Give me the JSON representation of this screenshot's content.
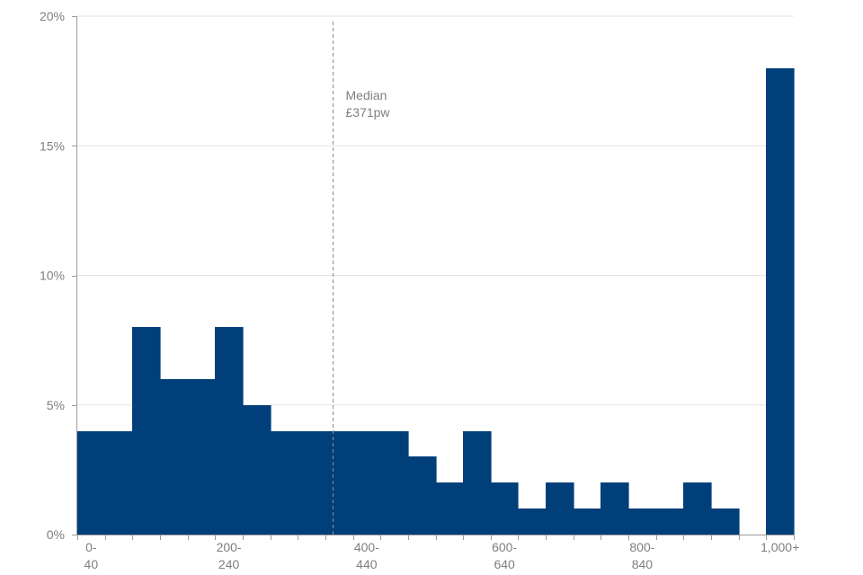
{
  "chart_data": {
    "type": "bar",
    "title": "",
    "xlabel": "",
    "ylabel": "",
    "ylim": [
      0,
      20
    ],
    "y_ticks": [
      "0%",
      "5%",
      "10%",
      "15%",
      "20%"
    ],
    "y_tick_values": [
      0,
      5,
      10,
      15,
      20
    ],
    "grid": true,
    "bar_color": "#003f7a",
    "bin_width": 40,
    "bin_starts": [
      0,
      40,
      80,
      120,
      160,
      200,
      240,
      280,
      320,
      360,
      400,
      440,
      480,
      520,
      560,
      600,
      640,
      680,
      720,
      760,
      800,
      840,
      880,
      920,
      960,
      1000
    ],
    "values": [
      4,
      4,
      8,
      6,
      6,
      8,
      5,
      4,
      4,
      4,
      4,
      4,
      3,
      2,
      4,
      2,
      1,
      2,
      1,
      2,
      1,
      1,
      2,
      1,
      0,
      18
    ],
    "x_tick_labels": [
      {
        "at": 0,
        "line1": "0-",
        "line2": "40"
      },
      {
        "at": 200,
        "line1": "200-",
        "line2": "240"
      },
      {
        "at": 400,
        "line1": "400-",
        "line2": "440"
      },
      {
        "at": 600,
        "line1": "600-",
        "line2": "640"
      },
      {
        "at": 800,
        "line1": "800-",
        "line2": "840"
      },
      {
        "at": 1000,
        "line1": "1,000+",
        "line2": ""
      }
    ],
    "median": {
      "value": 371,
      "label_line1": "Median",
      "label_line2": "£371pw"
    }
  }
}
